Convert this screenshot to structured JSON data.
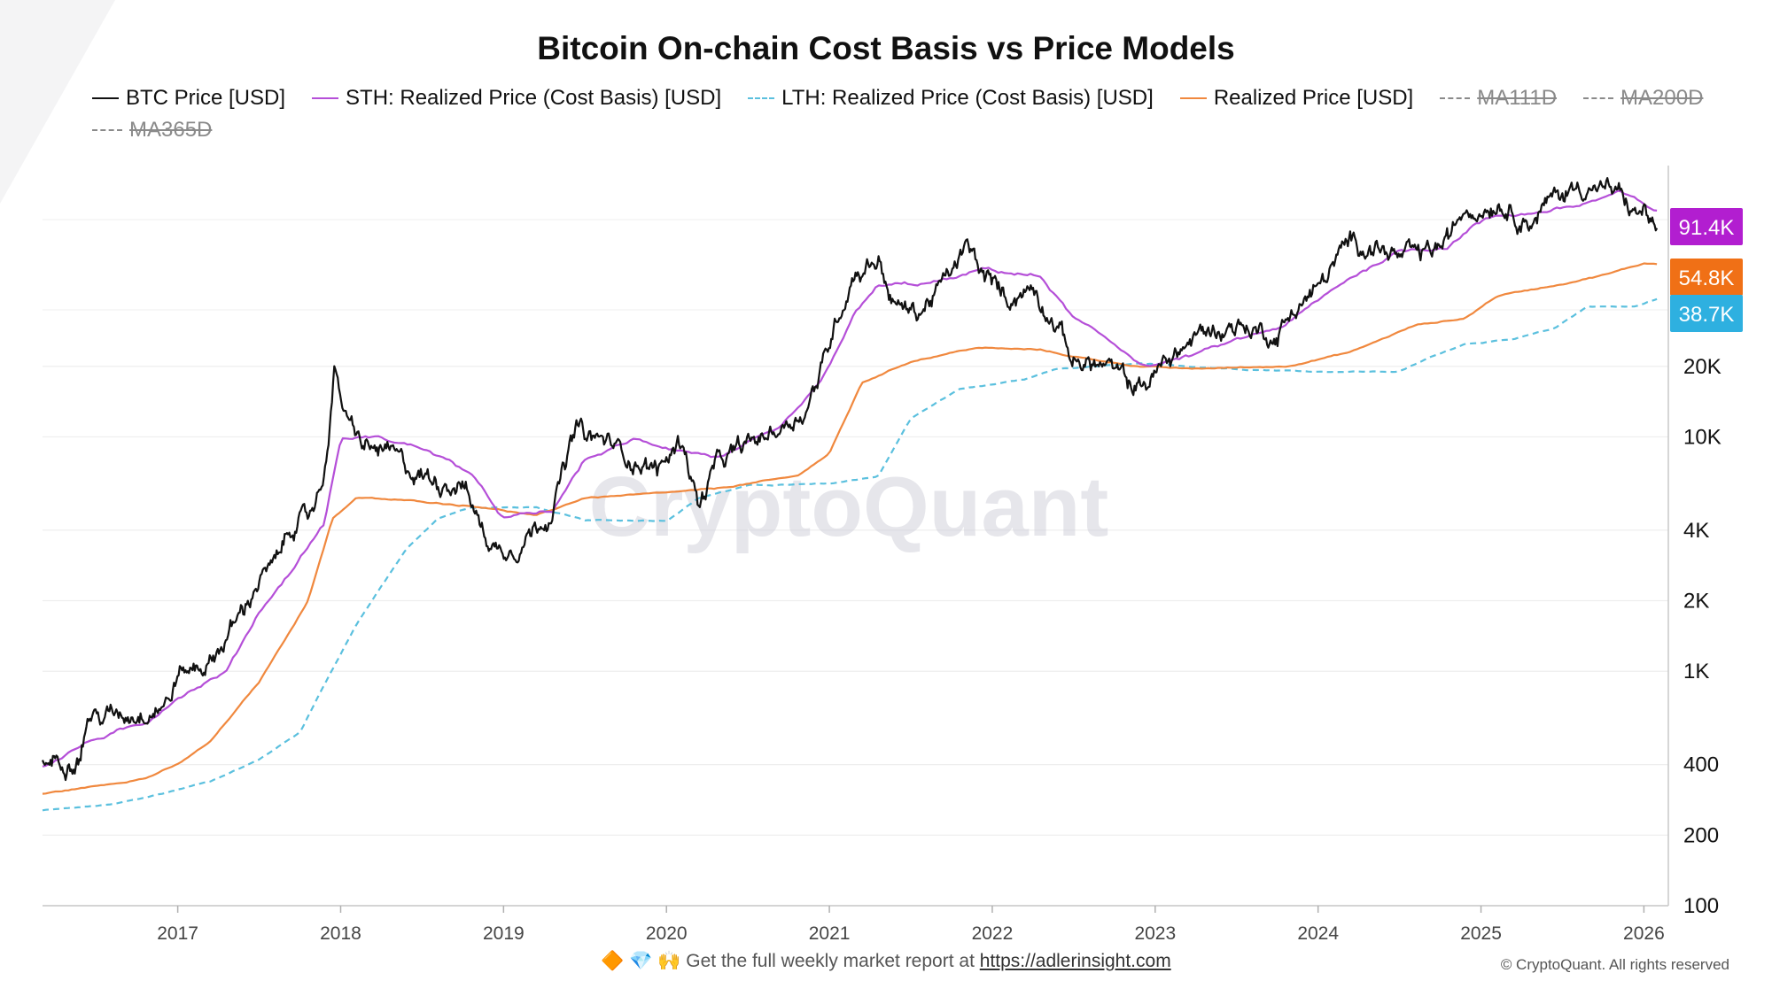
{
  "title": "Bitcoin On-chain Cost Basis vs Price Models",
  "legend": [
    {
      "label": "BTC Price [USD]",
      "color": "#111111",
      "style": "solid",
      "enabled": true
    },
    {
      "label": "STH: Realized Price (Cost Basis) [USD]",
      "color": "#b54fd8",
      "style": "solid",
      "enabled": true
    },
    {
      "label": "LTH: Realized Price (Cost Basis) [USD]",
      "color": "#5bc0de",
      "style": "dashed",
      "enabled": true
    },
    {
      "label": "Realized Price [USD]",
      "color": "#f0883e",
      "style": "solid",
      "enabled": true
    },
    {
      "label": "MA111D",
      "color": "#8a8a8a",
      "style": "dashed",
      "enabled": false
    },
    {
      "label": "MA200D",
      "color": "#8a8a8a",
      "style": "dashed",
      "enabled": false
    },
    {
      "label": "MA365D",
      "color": "#8a8a8a",
      "style": "dashed",
      "enabled": false
    }
  ],
  "watermark": "CryptoQuant",
  "footer": {
    "icons": [
      "diamond-orange-icon",
      "gem-icon",
      "raised-hands-icon"
    ],
    "emojis": "🔶 💎 🙌",
    "text": "Get the full weekly market report at",
    "link_text": "https://adlerinsight.com"
  },
  "copyright": "© CryptoQuant. All rights reserved",
  "chart_data": {
    "type": "line",
    "title": "Bitcoin On-chain Cost Basis vs Price Models",
    "x_range": [
      2016.17,
      2026.15
    ],
    "x_ticks": [
      2017,
      2018,
      2019,
      2020,
      2021,
      2022,
      2023,
      2024,
      2025,
      2026
    ],
    "x_tick_labels": [
      "2017",
      "2018",
      "2019",
      "2020",
      "2021",
      "2022",
      "2023",
      "2024",
      "2025",
      "2026"
    ],
    "y_scale": "log",
    "y_range": [
      100,
      140000
    ],
    "y_ticks": [
      100,
      200,
      400,
      1000,
      2000,
      4000,
      10000,
      20000
    ],
    "y_tick_labels": [
      "100",
      "200",
      "400",
      "1K",
      "2K",
      "4K",
      "10K",
      "20K"
    ],
    "grid": true,
    "legend_position": "top-left",
    "last_value_tags": [
      {
        "series": "STH: Realized Price (Cost Basis) [USD]",
        "label": "91.4K",
        "value": 91400,
        "color": "#b21ed0"
      },
      {
        "series": "Realized Price [USD]",
        "label": "54.8K",
        "value": 54800,
        "color": "#f07016"
      },
      {
        "series": "LTH: Realized Price (Cost Basis) [USD]",
        "label": "38.7K",
        "value": 38700,
        "color": "#2eb0e0"
      }
    ],
    "series": [
      {
        "name": "BTC Price [USD]",
        "color": "#111111",
        "style": "solid",
        "volatility": 0.06,
        "x": [
          2016.17,
          2016.4,
          2016.45,
          2016.55,
          2016.8,
          2016.95,
          2017.0,
          2017.2,
          2017.4,
          2017.5,
          2017.6,
          2017.7,
          2017.8,
          2017.9,
          2017.96,
          2018.05,
          2018.15,
          2018.3,
          2018.45,
          2018.6,
          2018.75,
          2018.87,
          2018.95,
          2019.1,
          2019.3,
          2019.45,
          2019.5,
          2019.65,
          2019.8,
          2019.95,
          2020.1,
          2020.2,
          2020.3,
          2020.5,
          2020.7,
          2020.85,
          2020.95,
          2021.05,
          2021.15,
          2021.3,
          2021.4,
          2021.55,
          2021.7,
          2021.85,
          2021.95,
          2022.1,
          2022.25,
          2022.4,
          2022.5,
          2022.7,
          2022.87,
          2022.95,
          2023.1,
          2023.3,
          2023.5,
          2023.75,
          2023.85,
          2024.0,
          2024.2,
          2024.35,
          2024.5,
          2024.65,
          2024.8,
          2024.9,
          2025.0,
          2025.1,
          2025.3,
          2025.45,
          2025.6,
          2025.75,
          2025.85,
          2025.95,
          2026.0,
          2026.08
        ],
        "y": [
          410,
          440,
          650,
          640,
          680,
          760,
          970,
          1100,
          1800,
          2500,
          2800,
          4300,
          4400,
          7000,
          19000,
          11000,
          9000,
          8500,
          7000,
          6500,
          6400,
          4000,
          3300,
          3500,
          5000,
          11000,
          10000,
          9500,
          8000,
          7200,
          9800,
          5000,
          7500,
          9200,
          11000,
          13000,
          19000,
          33000,
          50000,
          58000,
          36000,
          34000,
          45000,
          64000,
          48000,
          39000,
          44000,
          30000,
          21000,
          20000,
          16500,
          17000,
          22000,
          28000,
          30000,
          27000,
          35000,
          43000,
          69000,
          65000,
          58000,
          60000,
          68000,
          97000,
          95000,
          102000,
          83000,
          105000,
          118000,
          115000,
          108000,
          88000,
          92000,
          77000
        ]
      },
      {
        "name": "STH: Realized Price (Cost Basis) [USD]",
        "color": "#b54fd8",
        "style": "solid",
        "volatility": 0.012,
        "x": [
          2016.17,
          2016.45,
          2016.8,
          2017.0,
          2017.3,
          2017.5,
          2017.7,
          2017.9,
          2018.0,
          2018.2,
          2018.5,
          2018.8,
          2018.9,
          2019.0,
          2019.3,
          2019.5,
          2019.8,
          2020.2,
          2020.35,
          2020.7,
          2020.95,
          2021.15,
          2021.3,
          2021.6,
          2021.8,
          2021.95,
          2022.3,
          2022.5,
          2022.95,
          2023.2,
          2023.8,
          2024.2,
          2024.5,
          2024.8,
          2024.95,
          2025.1,
          2025.3,
          2025.6,
          2025.85,
          2026.0,
          2026.08
        ],
        "y": [
          390,
          500,
          600,
          780,
          1000,
          1800,
          2700,
          4300,
          9800,
          10000,
          9000,
          7000,
          5500,
          4500,
          4800,
          8000,
          9700,
          8500,
          8200,
          10800,
          17000,
          33000,
          44000,
          45000,
          48000,
          52000,
          48000,
          32000,
          20000,
          22000,
          30000,
          48000,
          62000,
          65000,
          80000,
          88000,
          90000,
          97000,
          110000,
          98000,
          91400
        ]
      },
      {
        "name": "Realized Price [USD]",
        "color": "#f0883e",
        "style": "solid",
        "volatility": 0.004,
        "x": [
          2016.17,
          2016.45,
          2016.8,
          2017.0,
          2017.2,
          2017.5,
          2017.8,
          2017.95,
          2018.1,
          2018.5,
          2018.9,
          2019.2,
          2019.5,
          2019.9,
          2020.3,
          2020.8,
          2021.0,
          2021.2,
          2021.5,
          2021.9,
          2022.3,
          2022.5,
          2022.9,
          2023.2,
          2023.8,
          2024.2,
          2024.6,
          2024.9,
          2025.1,
          2025.5,
          2025.8,
          2026.0,
          2026.08
        ],
        "y": [
          300,
          320,
          350,
          400,
          500,
          900,
          2000,
          4500,
          5500,
          5300,
          5000,
          4600,
          5500,
          5700,
          6000,
          6800,
          8500,
          17000,
          21000,
          24000,
          23500,
          22000,
          20000,
          19500,
          20000,
          23000,
          30000,
          32000,
          40000,
          45000,
          50000,
          55000,
          54800
        ]
      },
      {
        "name": "LTH: Realized Price (Cost Basis) [USD]",
        "color": "#5bc0de",
        "style": "dashed",
        "volatility": 0.003,
        "x": [
          2016.17,
          2016.6,
          2016.9,
          2017.2,
          2017.5,
          2017.75,
          2017.9,
          2018.1,
          2018.4,
          2018.6,
          2018.8,
          2019.2,
          2019.5,
          2020.0,
          2020.2,
          2020.5,
          2021.0,
          2021.3,
          2021.5,
          2021.8,
          2022.2,
          2022.4,
          2022.9,
          2023.5,
          2024.0,
          2024.5,
          2024.7,
          2024.9,
          2025.2,
          2025.45,
          2025.65,
          2025.95,
          2026.08
        ],
        "y": [
          255,
          270,
          300,
          340,
          420,
          550,
          880,
          1600,
          3300,
          4500,
          5000,
          5000,
          4400,
          4400,
          5500,
          6200,
          6300,
          6800,
          12000,
          16000,
          17500,
          19500,
          20500,
          19500,
          19000,
          19000,
          22000,
          25000,
          26000,
          29000,
          36000,
          36000,
          38700
        ]
      }
    ]
  }
}
